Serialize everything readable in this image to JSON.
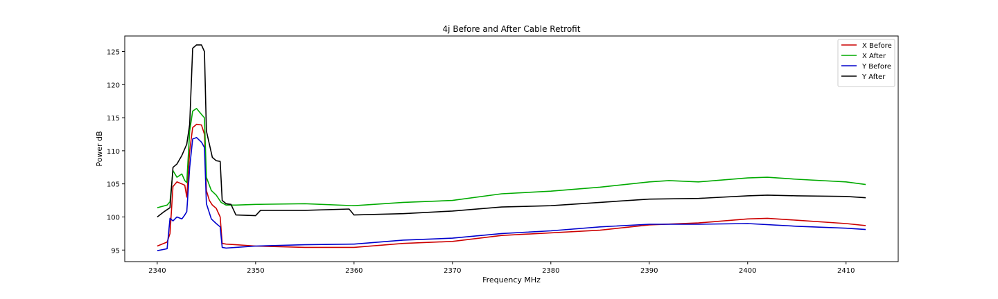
{
  "chart_data": {
    "type": "line",
    "title": "4j Before and After Cable Retrofit",
    "xlabel": "Frequency MHz",
    "ylabel": "Power dB",
    "xlim": [
      2336.7,
      2415.3
    ],
    "ylim": [
      93.25,
      127.35
    ],
    "xticks": [
      2340,
      2350,
      2360,
      2370,
      2380,
      2390,
      2400,
      2410
    ],
    "yticks": [
      95,
      100,
      105,
      110,
      115,
      120,
      125
    ],
    "grid": false,
    "legend_position": "top-right",
    "series": [
      {
        "name": "X Before",
        "color": "#cc0000",
        "x": [
          2340.0,
          2341.0,
          2341.3,
          2341.6,
          2342.0,
          2342.5,
          2342.8,
          2343.0,
          2343.3,
          2343.6,
          2344.0,
          2344.5,
          2344.8,
          2345.0,
          2345.3,
          2345.6,
          2346.0,
          2346.4,
          2346.6,
          2347.0,
          2348.0,
          2350.0,
          2355.0,
          2360.0,
          2365.0,
          2370.0,
          2375.0,
          2380.0,
          2385.0,
          2390.0,
          2395.0,
          2400.0,
          2402.0,
          2405.0,
          2410.0,
          2412.0
        ],
        "y": [
          95.6,
          96.2,
          97.5,
          104.6,
          105.3,
          105.0,
          104.8,
          103.0,
          110.0,
          113.5,
          114.0,
          113.9,
          112.5,
          104.0,
          102.5,
          101.8,
          101.3,
          100.0,
          96.0,
          95.9,
          95.8,
          95.6,
          95.4,
          95.4,
          96.0,
          96.3,
          97.2,
          97.6,
          98.0,
          98.8,
          99.1,
          99.7,
          99.8,
          99.5,
          99.0,
          98.7
        ]
      },
      {
        "name": "X After",
        "color": "#00aa00",
        "x": [
          2340.0,
          2341.0,
          2341.3,
          2341.6,
          2342.0,
          2342.5,
          2342.8,
          2343.0,
          2343.3,
          2343.6,
          2344.0,
          2344.5,
          2344.8,
          2345.0,
          2345.5,
          2346.0,
          2346.5,
          2347.0,
          2348.0,
          2350.0,
          2355.0,
          2360.0,
          2365.0,
          2370.0,
          2375.0,
          2380.0,
          2385.0,
          2390.0,
          2392.0,
          2395.0,
          2400.0,
          2402.0,
          2405.0,
          2410.0,
          2412.0
        ],
        "y": [
          101.4,
          101.8,
          102.3,
          107.0,
          106.0,
          106.5,
          105.5,
          105.2,
          113.0,
          116.0,
          116.4,
          115.5,
          115.0,
          106.0,
          104.0,
          103.3,
          102.2,
          101.8,
          101.8,
          101.9,
          102.0,
          101.7,
          102.2,
          102.5,
          103.5,
          103.9,
          104.5,
          105.3,
          105.5,
          105.3,
          105.9,
          106.0,
          105.7,
          105.3,
          104.9
        ]
      },
      {
        "name": "Y Before",
        "color": "#0000cc",
        "x": [
          2340.0,
          2341.0,
          2341.3,
          2341.6,
          2342.0,
          2342.5,
          2342.8,
          2343.0,
          2343.3,
          2343.6,
          2344.0,
          2344.5,
          2344.8,
          2345.0,
          2345.5,
          2346.0,
          2346.4,
          2346.6,
          2347.0,
          2348.0,
          2350.0,
          2355.0,
          2360.0,
          2365.0,
          2370.0,
          2375.0,
          2380.0,
          2385.0,
          2390.0,
          2395.0,
          2400.0,
          2405.0,
          2410.0,
          2412.0
        ],
        "y": [
          94.9,
          95.2,
          99.8,
          99.4,
          100.0,
          99.7,
          100.3,
          100.8,
          107.5,
          111.8,
          112.0,
          111.3,
          110.5,
          102.0,
          99.7,
          99.0,
          98.5,
          95.4,
          95.3,
          95.4,
          95.6,
          95.8,
          95.9,
          96.5,
          96.8,
          97.5,
          97.9,
          98.5,
          98.9,
          98.9,
          99.0,
          98.6,
          98.3,
          98.1
        ]
      },
      {
        "name": "Y After",
        "color": "#000000",
        "x": [
          2340.0,
          2340.7,
          2341.3,
          2341.6,
          2342.0,
          2342.5,
          2343.0,
          2343.3,
          2343.6,
          2344.0,
          2344.5,
          2344.8,
          2345.0,
          2345.3,
          2345.6,
          2346.0,
          2346.4,
          2346.6,
          2347.0,
          2347.5,
          2348.0,
          2350.0,
          2350.5,
          2355.0,
          2359.5,
          2360.0,
          2365.0,
          2370.0,
          2375.0,
          2380.0,
          2385.0,
          2390.0,
          2395.0,
          2400.0,
          2402.0,
          2405.0,
          2410.0,
          2412.0
        ],
        "y": [
          100.0,
          100.8,
          101.4,
          107.5,
          108.0,
          109.3,
          111.0,
          114.0,
          125.5,
          126.0,
          126.0,
          125.0,
          113.0,
          111.0,
          109.0,
          108.5,
          108.4,
          102.5,
          102.0,
          101.9,
          100.3,
          100.2,
          101.0,
          101.0,
          101.2,
          100.3,
          100.5,
          100.9,
          101.5,
          101.7,
          102.2,
          102.7,
          102.8,
          103.2,
          103.3,
          103.2,
          103.1,
          102.9
        ]
      }
    ]
  }
}
